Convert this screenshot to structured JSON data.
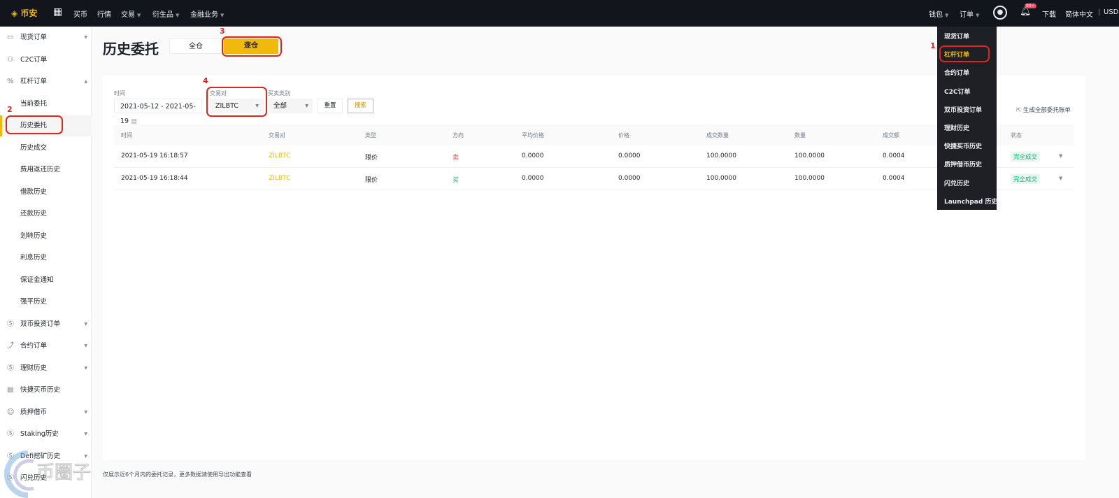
{
  "topbar": {
    "logo": "币安",
    "nav": [
      "买币",
      "行情",
      "交易",
      "衍生品",
      "金融业务"
    ],
    "nav_has_caret": [
      false,
      false,
      true,
      true,
      true
    ],
    "right": {
      "wallet": "钱包",
      "orders": "订单",
      "notif_badge": "99+",
      "download": "下载",
      "lang": "简体中文",
      "currency": "USD"
    }
  },
  "sidebar": {
    "items": [
      {
        "label": "现货订单",
        "icon": "card-icon",
        "caret": "down",
        "level": 0
      },
      {
        "label": "C2C订单",
        "icon": "users-icon",
        "level": 0
      },
      {
        "label": "杠杆订单",
        "icon": "percent-icon",
        "caret": "up",
        "level": 0
      },
      {
        "label": "当前委托",
        "level": 1
      },
      {
        "label": "历史委托",
        "level": 1,
        "active": true
      },
      {
        "label": "历史成交",
        "level": 1
      },
      {
        "label": "费用返还历史",
        "level": 1
      },
      {
        "label": "借款历史",
        "level": 1
      },
      {
        "label": "还款历史",
        "level": 1
      },
      {
        "label": "划转历史",
        "level": 1
      },
      {
        "label": "利息历史",
        "level": 1
      },
      {
        "label": "保证金通知",
        "level": 1
      },
      {
        "label": "强平历史",
        "level": 1
      },
      {
        "label": "双币投资订单",
        "icon": "coin-icon",
        "caret": "down",
        "level": 0
      },
      {
        "label": "合约订单",
        "icon": "futures-icon",
        "caret": "down",
        "level": 0
      },
      {
        "label": "理财历史",
        "icon": "coin-icon",
        "caret": "down",
        "level": 0
      },
      {
        "label": "快捷买币历史",
        "icon": "document-icon",
        "level": 0
      },
      {
        "label": "质押借币",
        "icon": "loan-icon",
        "caret": "down",
        "level": 0
      },
      {
        "label": "Staking历史",
        "icon": "coin-icon",
        "caret": "down",
        "level": 0
      },
      {
        "label": "Defi挖矿历史",
        "icon": "coin-icon",
        "caret": "down",
        "level": 0
      },
      {
        "label": "闪兑历史",
        "icon": "coin-icon",
        "level": 0
      }
    ]
  },
  "page": {
    "title": "历史委托",
    "tabs": [
      {
        "label": "全仓",
        "active": false
      },
      {
        "label": "逐仓",
        "active": true
      }
    ]
  },
  "filters": {
    "time_label": "时间",
    "time_value": "2021-05-12 - 2021-05-19",
    "pair_label": "交易对",
    "pair_value": "ZILBTC",
    "side_label": "买卖类别",
    "side_value": "全部",
    "reset": "重置",
    "search": "搜索",
    "export": "生成全部委托账单"
  },
  "table": {
    "headers": [
      "时间",
      "交易对",
      "类型",
      "方向",
      "平均价格",
      "价格",
      "成交数量",
      "数量",
      "成交额",
      "状态"
    ],
    "rows": [
      {
        "time": "2021-05-19 16:18:57",
        "pair": "ZILBTC",
        "type": "限价",
        "side": "卖",
        "avg": "0.0000",
        "price": "0.0000",
        "filled": "100.0000",
        "qty": "100.0000",
        "total": "0.0004",
        "status": "完全成交"
      },
      {
        "time": "2021-05-19 16:18:44",
        "pair": "ZILBTC",
        "type": "限价",
        "side": "买",
        "avg": "0.0000",
        "price": "0.0000",
        "filled": "100.0000",
        "qty": "100.0000",
        "total": "0.0004",
        "status": "完全成交"
      }
    ]
  },
  "orders_menu": [
    "现货订单",
    "杠杆订单",
    "合约订单",
    "C2C订单",
    "双币投资订单",
    "理财历史",
    "快捷买币历史",
    "质押借币历史",
    "闪兑历史",
    "Launchpad 历史"
  ],
  "orders_menu_highlight": 1,
  "annotations": [
    "1",
    "2",
    "3",
    "4"
  ],
  "footer": "仅展示近6个月内的委托记录，更多数据请使用导出功能查看",
  "watermark": "币圈子",
  "colors": {
    "accent": "#f0b90b",
    "sell": "#f84960",
    "buy": "#02c076",
    "annotation": "#e0261b",
    "topbar": "#12161c"
  }
}
